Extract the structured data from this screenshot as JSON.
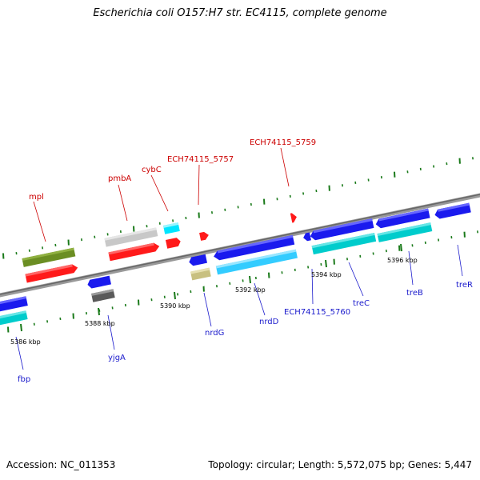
{
  "title": "Escherichia coli O157:H7 str. EC4115, complete genome",
  "footer": {
    "accession": "Accession: NC_011353",
    "summary": "Topology: circular; Length: 5,572,075 bp; Genes: 5,447"
  },
  "ticks": [
    {
      "label": "5386 kbp"
    },
    {
      "label": "5388 kbp"
    },
    {
      "label": "5390 kbp"
    },
    {
      "label": "5392 kbp"
    },
    {
      "label": "5394 kbp"
    },
    {
      "label": "5396 kbp"
    }
  ],
  "genes": {
    "mpl": "mpl",
    "pmbA": "pmbA",
    "cybC": "cybC",
    "ECH74115_5757": "ECH74115_5757",
    "ECH74115_5759": "ECH74115_5759",
    "fbp": "fbp",
    "yjgA": "yjgA",
    "nrdG": "nrdG",
    "nrdD": "nrdD",
    "ECH74115_5760": "ECH74115_5760",
    "treC": "treC",
    "treB": "treB",
    "treR": "treR"
  },
  "colors": {
    "label_top": "#cc0000",
    "label_bottom": "#1a1acc",
    "red": "#ff1a1a",
    "blue": "#1a1aee",
    "cyan": "#00cccc",
    "olive": "#6b8e23",
    "lightgray": "#c8c8c8",
    "darkgray": "#5a5a5a",
    "khaki": "#c8c080",
    "lightblue": "#33ccff",
    "backbone": "#888888",
    "tick": "#1a7a1a"
  }
}
